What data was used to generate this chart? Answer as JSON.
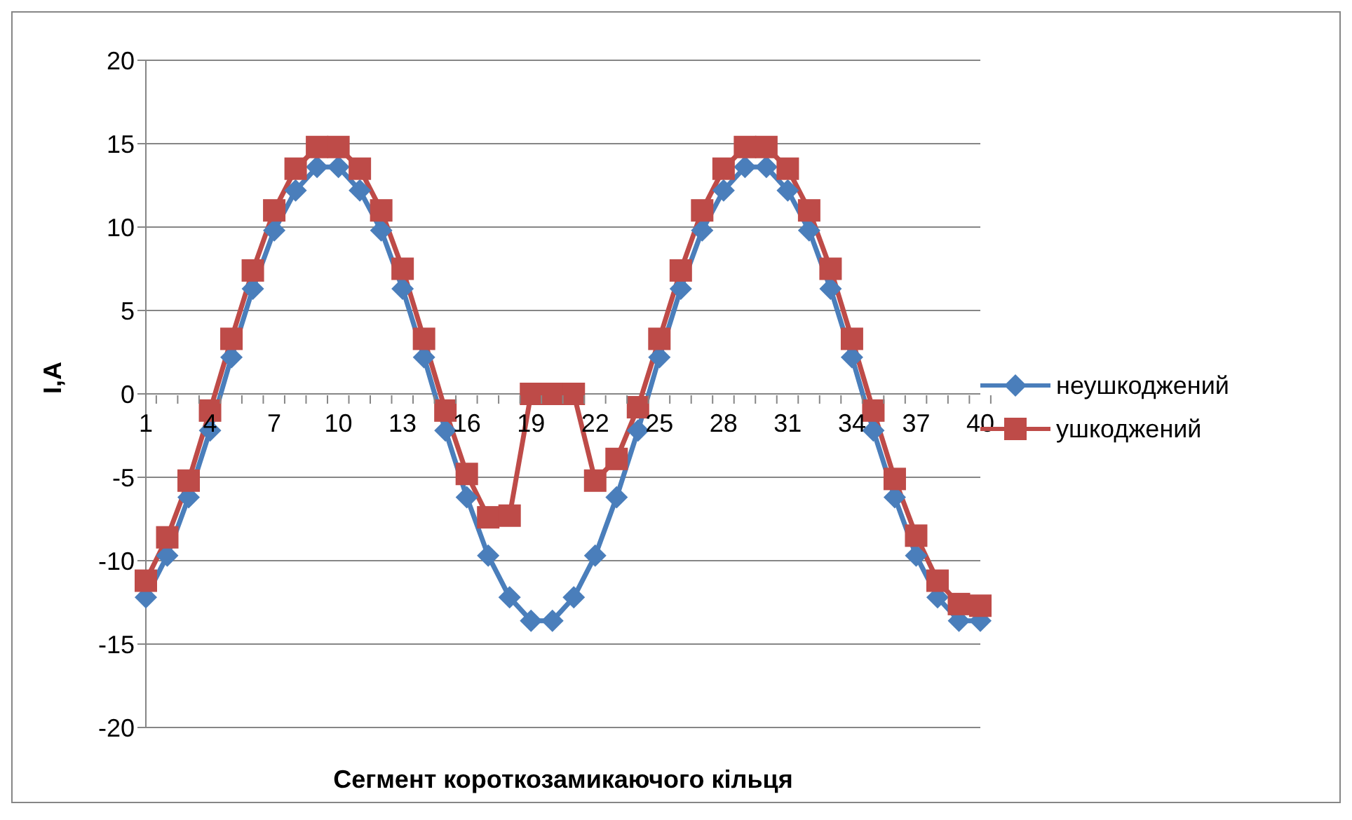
{
  "chart_data": {
    "type": "line",
    "xlabel": "Сегмент короткозамикаючого кільця",
    "ylabel": "I,A",
    "categories": [
      "1",
      null,
      null,
      "4",
      null,
      null,
      "7",
      null,
      null,
      "10",
      null,
      null,
      "13",
      null,
      null,
      "16",
      null,
      null,
      "19",
      null,
      null,
      "22",
      null,
      null,
      "25",
      null,
      null,
      "28",
      null,
      null,
      "31",
      null,
      null,
      "34",
      null,
      null,
      "37",
      null,
      null,
      "40"
    ],
    "series": [
      {
        "name": "неушкоджений",
        "color": "#4a7ebb",
        "marker": "diamond",
        "values": [
          -12.2,
          -9.7,
          -6.2,
          -2.2,
          2.2,
          6.3,
          9.8,
          12.2,
          13.6,
          13.6,
          12.2,
          9.8,
          6.3,
          2.2,
          -2.2,
          -6.2,
          -9.7,
          -12.2,
          -13.6,
          -13.6,
          -12.2,
          -9.7,
          -6.2,
          -2.2,
          2.2,
          6.3,
          9.8,
          12.2,
          13.6,
          13.6,
          12.2,
          9.8,
          6.3,
          2.2,
          -2.2,
          -6.2,
          -9.7,
          -12.2,
          -13.6,
          -13.6
        ]
      },
      {
        "name": "ушкоджений",
        "color": "#be4b48",
        "marker": "square",
        "values": [
          -11.2,
          -8.6,
          -5.2,
          -1.0,
          3.3,
          7.4,
          11.0,
          13.5,
          14.8,
          14.8,
          13.5,
          11.0,
          7.5,
          3.3,
          -1.0,
          -4.8,
          -7.4,
          -7.3,
          0,
          0,
          0,
          -5.2,
          -3.9,
          -0.8,
          3.3,
          7.4,
          11.0,
          13.5,
          14.8,
          14.8,
          13.5,
          11.0,
          7.5,
          3.3,
          -1.0,
          -5.1,
          -8.5,
          -11.2,
          -12.6,
          -12.7
        ]
      }
    ],
    "ylim": [
      -20,
      20
    ],
    "yticks": [
      -20,
      -15,
      -10,
      -5,
      0,
      5,
      10,
      15,
      20
    ],
    "grid": "y",
    "legend": "right",
    "line_style": "solid"
  }
}
